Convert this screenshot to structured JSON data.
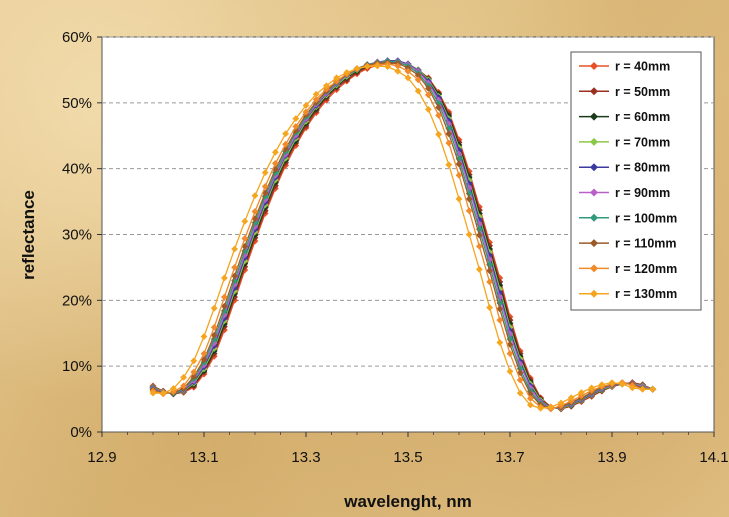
{
  "chart_data": {
    "type": "line",
    "xlabel": "wavelenght, nm",
    "ylabel": "reflectance",
    "xlim": [
      12.9,
      14.1
    ],
    "ylim": [
      0,
      60
    ],
    "xticks": [
      "12.9",
      "13.1",
      "13.3",
      "13.5",
      "13.7",
      "13.9",
      "14.1"
    ],
    "yticks": [
      "0%",
      "10%",
      "20%",
      "30%",
      "40%",
      "50%",
      "60%"
    ],
    "grid": "horizontal dashed",
    "legend_position": "right",
    "x": [
      13.0,
      13.02,
      13.04,
      13.06,
      13.08,
      13.1,
      13.12,
      13.14,
      13.16,
      13.18,
      13.2,
      13.22,
      13.24,
      13.26,
      13.28,
      13.3,
      13.32,
      13.34,
      13.36,
      13.38,
      13.4,
      13.42,
      13.44,
      13.46,
      13.48,
      13.5,
      13.52,
      13.54,
      13.56,
      13.58,
      13.6,
      13.62,
      13.64,
      13.66,
      13.68,
      13.7,
      13.72,
      13.74,
      13.76,
      13.78,
      13.8,
      13.82,
      13.84,
      13.86,
      13.88,
      13.9,
      13.92,
      13.94,
      13.96,
      13.98
    ],
    "series": [
      {
        "name": "r = 40mm",
        "color": "#e8502a",
        "shift": 0.01,
        "peak": 56.0,
        "vals": [
          7.0,
          6.2,
          5.8,
          6.0,
          6.8,
          8.8,
          11.5,
          15.5,
          20.0,
          24.6,
          29.0,
          33.2,
          37.0,
          40.5,
          43.5,
          46.2,
          48.5,
          50.4,
          52.0,
          53.3,
          54.4,
          55.2,
          55.7,
          55.9,
          56.0,
          55.8,
          55.0,
          53.8,
          51.6,
          48.6,
          44.4,
          39.6,
          34.2,
          28.8,
          23.4,
          17.5,
          12.3,
          8.2,
          5.2,
          3.8,
          3.5,
          3.9,
          4.6,
          5.4,
          6.2,
          6.9,
          7.3,
          7.5,
          7.2,
          6.5
        ]
      },
      {
        "name": "r = 50mm",
        "color": "#9b3020",
        "shift": 0.008,
        "peak": 56.2,
        "vals": []
      },
      {
        "name": "r = 60mm",
        "color": "#1a3a1a",
        "shift": 0.006,
        "peak": 56.4,
        "vals": []
      },
      {
        "name": "r = 70mm",
        "color": "#8cc84a",
        "shift": 0.004,
        "peak": 56.5,
        "vals": []
      },
      {
        "name": "r = 80mm",
        "color": "#3b3aa0",
        "shift": 0.002,
        "peak": 56.6,
        "vals": []
      },
      {
        "name": "r = 90mm",
        "color": "#b860c8",
        "shift": 0.0,
        "peak": 56.5,
        "vals": []
      },
      {
        "name": "r = 100mm",
        "color": "#2f9a7c",
        "shift": -0.003,
        "peak": 56.4,
        "vals": []
      },
      {
        "name": "r = 110mm",
        "color": "#9a5a2a",
        "shift": -0.006,
        "peak": 56.2,
        "vals": []
      },
      {
        "name": "r = 120mm",
        "color": "#f08a2a",
        "shift": -0.012,
        "peak": 55.9,
        "vals": []
      },
      {
        "name": "r = 130mm",
        "color": "#f5a51e",
        "shift": -0.025,
        "peak": 55.5,
        "vals": []
      }
    ]
  }
}
